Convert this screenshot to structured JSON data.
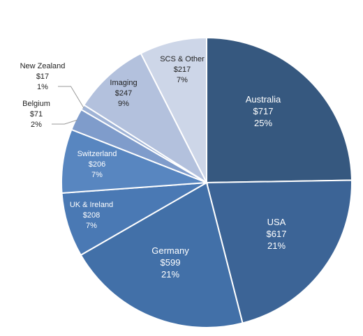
{
  "chart_data": {
    "type": "pie",
    "title": "",
    "start_angle_deg": 0,
    "direction": "clockwise",
    "slices": [
      {
        "label": "Australia",
        "value_label": "$717",
        "value": 717,
        "percent_label": "25%",
        "color": "#36587f",
        "text_color": "#ffffff"
      },
      {
        "label": "USA",
        "value_label": "$617",
        "value": 617,
        "percent_label": "21%",
        "color": "#3c6496",
        "text_color": "#ffffff"
      },
      {
        "label": "Germany",
        "value_label": "$599",
        "value": 599,
        "percent_label": "21%",
        "color": "#4270a8",
        "text_color": "#ffffff"
      },
      {
        "label": "UK & Ireland",
        "value_label": "$208",
        "value": 208,
        "percent_label": "7%",
        "color": "#4a79b4",
        "text_color": "#ffffff"
      },
      {
        "label": "Switzerland",
        "value_label": "$206",
        "value": 206,
        "percent_label": "7%",
        "color": "#5886c0",
        "text_color": "#ffffff"
      },
      {
        "label": "Belgium",
        "value_label": "$71",
        "value": 71,
        "percent_label": "2%",
        "color": "#7f9ccb",
        "text_color": "#222222"
      },
      {
        "label": "New Zealand",
        "value_label": "$17",
        "value": 17,
        "percent_label": "1%",
        "color": "#9fb3d6",
        "text_color": "#222222"
      },
      {
        "label": "Imaging",
        "value_label": "$247",
        "value": 247,
        "percent_label": "9%",
        "color": "#b3c1dd",
        "text_color": "#222222"
      },
      {
        "label": "SCS & Other",
        "value_label": "$217",
        "value": 217,
        "percent_label": "7%",
        "color": "#cdd6e8",
        "text_color": "#222222"
      }
    ]
  }
}
